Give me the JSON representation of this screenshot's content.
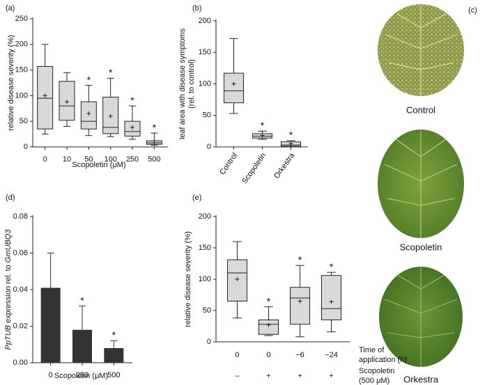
{
  "chart_data": [
    {
      "type": "box",
      "panel_label": "(a)",
      "ylabel": [
        "relative disease severity (%)"
      ],
      "xlabel": "Scopoletin (μM)",
      "categories": [
        "0",
        "10",
        "50",
        "100",
        "250",
        "500"
      ],
      "stats": {
        "min": [
          25,
          40,
          22,
          20,
          15,
          3
        ],
        "q1": [
          35,
          52,
          35,
          26,
          21,
          5
        ],
        "median": [
          95,
          80,
          50,
          38,
          30,
          8
        ],
        "q3": [
          157,
          128,
          88,
          97,
          50,
          12
        ],
        "max": [
          200,
          145,
          120,
          134,
          80,
          27
        ],
        "mean": [
          100,
          88,
          65,
          60,
          38,
          8
        ]
      },
      "significance": [
        null,
        null,
        "*",
        "*",
        "*",
        "*"
      ],
      "color": "#d9d9d9",
      "ylim": [
        0,
        250
      ],
      "yticks": [
        0,
        50,
        100,
        150,
        200,
        250
      ]
    },
    {
      "type": "box",
      "panel_label": "(b)",
      "ylabel": [
        "leaf area with disease symptoms",
        "(rel. to control)"
      ],
      "categories": [
        "Control",
        "Scopoletin",
        "Orkestra"
      ],
      "stats": {
        "min": [
          53,
          12,
          0
        ],
        "q1": [
          70,
          14,
          1
        ],
        "median": [
          89,
          17,
          3
        ],
        "q3": [
          117,
          21,
          8
        ],
        "max": [
          172,
          25,
          10
        ],
        "mean": [
          100,
          18,
          5
        ]
      },
      "significance": [
        null,
        "*",
        "*"
      ],
      "color": "#d9d9d9",
      "ylim": [
        0,
        200
      ],
      "yticks": [
        0,
        50,
        100,
        150,
        200
      ]
    },
    {
      "type": "bar",
      "panel_label": "(d)",
      "ylabel": [
        "PpTUB",
        "expression rel. to",
        "GmUBQ3"
      ],
      "xlabel": "Scopoletin (μM)",
      "categories": [
        "0",
        "250",
        "500"
      ],
      "values": [
        0.041,
        0.018,
        0.008
      ],
      "errors": [
        0.019,
        0.013,
        0.004
      ],
      "significance": [
        null,
        "*",
        "*"
      ],
      "color": "#333333",
      "ylim": [
        0,
        0.08
      ],
      "yticks": [
        {
          "value": 0,
          "label": "0.00"
        },
        0.02,
        0.04,
        0.06,
        0.08
      ]
    },
    {
      "type": "box",
      "panel_label": "(e)",
      "ylabel": [
        "relative disease severity (%)"
      ],
      "categories": [
        "0",
        "0",
        "−6",
        "−24"
      ],
      "x_rows": [
        {
          "label": [
            "Time of",
            "application (h)"
          ],
          "categories": [
            "0",
            "0",
            "−6",
            "−24"
          ]
        },
        {
          "label": [
            "Scopoletin",
            "(500 μM)"
          ],
          "categories": [
            "–",
            "+",
            "+",
            "+"
          ]
        }
      ],
      "stats": {
        "min": [
          38,
          10,
          8,
          16
        ],
        "q1": [
          65,
          12,
          28,
          35
        ],
        "median": [
          110,
          28,
          70,
          53
        ],
        "q3": [
          131,
          35,
          87,
          106
        ],
        "max": [
          160,
          56,
          122,
          111
        ],
        "mean": [
          100,
          27,
          65,
          64
        ]
      },
      "significance": [
        null,
        "*",
        "*",
        "*"
      ],
      "color": "#d9d9d9",
      "ylim": [
        0,
        200
      ],
      "yticks": [
        0,
        50,
        100,
        150,
        200
      ]
    }
  ],
  "photo_panel": {
    "panel_label": "(c)",
    "labels": [
      "Control",
      "Scopoletin",
      "Orkestra"
    ]
  }
}
